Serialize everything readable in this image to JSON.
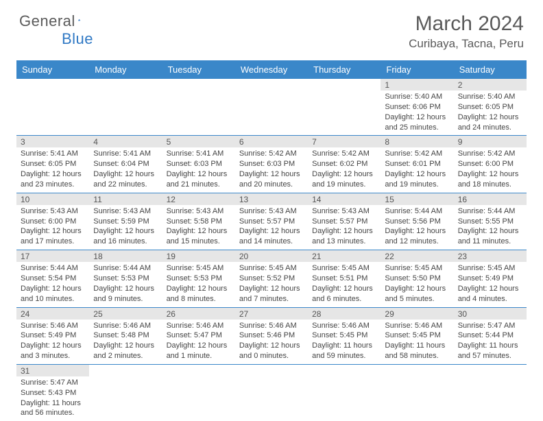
{
  "brand": {
    "name1": "General",
    "name2": "Blue"
  },
  "title": "March 2024",
  "location": "Curibaya, Tacna, Peru",
  "colors": {
    "header_bg": "#3a87c9",
    "header_fg": "#ffffff",
    "daynum_bg": "#e6e6e6",
    "rule": "#3a87c9",
    "text": "#444444",
    "title_fg": "#5a5a5a"
  },
  "weekdays": [
    "Sunday",
    "Monday",
    "Tuesday",
    "Wednesday",
    "Thursday",
    "Friday",
    "Saturday"
  ],
  "weeks": [
    [
      null,
      null,
      null,
      null,
      null,
      {
        "n": "1",
        "sr": "Sunrise: 5:40 AM",
        "ss": "Sunset: 6:06 PM",
        "d1": "Daylight: 12 hours",
        "d2": "and 25 minutes."
      },
      {
        "n": "2",
        "sr": "Sunrise: 5:40 AM",
        "ss": "Sunset: 6:05 PM",
        "d1": "Daylight: 12 hours",
        "d2": "and 24 minutes."
      }
    ],
    [
      {
        "n": "3",
        "sr": "Sunrise: 5:41 AM",
        "ss": "Sunset: 6:05 PM",
        "d1": "Daylight: 12 hours",
        "d2": "and 23 minutes."
      },
      {
        "n": "4",
        "sr": "Sunrise: 5:41 AM",
        "ss": "Sunset: 6:04 PM",
        "d1": "Daylight: 12 hours",
        "d2": "and 22 minutes."
      },
      {
        "n": "5",
        "sr": "Sunrise: 5:41 AM",
        "ss": "Sunset: 6:03 PM",
        "d1": "Daylight: 12 hours",
        "d2": "and 21 minutes."
      },
      {
        "n": "6",
        "sr": "Sunrise: 5:42 AM",
        "ss": "Sunset: 6:03 PM",
        "d1": "Daylight: 12 hours",
        "d2": "and 20 minutes."
      },
      {
        "n": "7",
        "sr": "Sunrise: 5:42 AM",
        "ss": "Sunset: 6:02 PM",
        "d1": "Daylight: 12 hours",
        "d2": "and 19 minutes."
      },
      {
        "n": "8",
        "sr": "Sunrise: 5:42 AM",
        "ss": "Sunset: 6:01 PM",
        "d1": "Daylight: 12 hours",
        "d2": "and 19 minutes."
      },
      {
        "n": "9",
        "sr": "Sunrise: 5:42 AM",
        "ss": "Sunset: 6:00 PM",
        "d1": "Daylight: 12 hours",
        "d2": "and 18 minutes."
      }
    ],
    [
      {
        "n": "10",
        "sr": "Sunrise: 5:43 AM",
        "ss": "Sunset: 6:00 PM",
        "d1": "Daylight: 12 hours",
        "d2": "and 17 minutes."
      },
      {
        "n": "11",
        "sr": "Sunrise: 5:43 AM",
        "ss": "Sunset: 5:59 PM",
        "d1": "Daylight: 12 hours",
        "d2": "and 16 minutes."
      },
      {
        "n": "12",
        "sr": "Sunrise: 5:43 AM",
        "ss": "Sunset: 5:58 PM",
        "d1": "Daylight: 12 hours",
        "d2": "and 15 minutes."
      },
      {
        "n": "13",
        "sr": "Sunrise: 5:43 AM",
        "ss": "Sunset: 5:57 PM",
        "d1": "Daylight: 12 hours",
        "d2": "and 14 minutes."
      },
      {
        "n": "14",
        "sr": "Sunrise: 5:43 AM",
        "ss": "Sunset: 5:57 PM",
        "d1": "Daylight: 12 hours",
        "d2": "and 13 minutes."
      },
      {
        "n": "15",
        "sr": "Sunrise: 5:44 AM",
        "ss": "Sunset: 5:56 PM",
        "d1": "Daylight: 12 hours",
        "d2": "and 12 minutes."
      },
      {
        "n": "16",
        "sr": "Sunrise: 5:44 AM",
        "ss": "Sunset: 5:55 PM",
        "d1": "Daylight: 12 hours",
        "d2": "and 11 minutes."
      }
    ],
    [
      {
        "n": "17",
        "sr": "Sunrise: 5:44 AM",
        "ss": "Sunset: 5:54 PM",
        "d1": "Daylight: 12 hours",
        "d2": "and 10 minutes."
      },
      {
        "n": "18",
        "sr": "Sunrise: 5:44 AM",
        "ss": "Sunset: 5:53 PM",
        "d1": "Daylight: 12 hours",
        "d2": "and 9 minutes."
      },
      {
        "n": "19",
        "sr": "Sunrise: 5:45 AM",
        "ss": "Sunset: 5:53 PM",
        "d1": "Daylight: 12 hours",
        "d2": "and 8 minutes."
      },
      {
        "n": "20",
        "sr": "Sunrise: 5:45 AM",
        "ss": "Sunset: 5:52 PM",
        "d1": "Daylight: 12 hours",
        "d2": "and 7 minutes."
      },
      {
        "n": "21",
        "sr": "Sunrise: 5:45 AM",
        "ss": "Sunset: 5:51 PM",
        "d1": "Daylight: 12 hours",
        "d2": "and 6 minutes."
      },
      {
        "n": "22",
        "sr": "Sunrise: 5:45 AM",
        "ss": "Sunset: 5:50 PM",
        "d1": "Daylight: 12 hours",
        "d2": "and 5 minutes."
      },
      {
        "n": "23",
        "sr": "Sunrise: 5:45 AM",
        "ss": "Sunset: 5:49 PM",
        "d1": "Daylight: 12 hours",
        "d2": "and 4 minutes."
      }
    ],
    [
      {
        "n": "24",
        "sr": "Sunrise: 5:46 AM",
        "ss": "Sunset: 5:49 PM",
        "d1": "Daylight: 12 hours",
        "d2": "and 3 minutes."
      },
      {
        "n": "25",
        "sr": "Sunrise: 5:46 AM",
        "ss": "Sunset: 5:48 PM",
        "d1": "Daylight: 12 hours",
        "d2": "and 2 minutes."
      },
      {
        "n": "26",
        "sr": "Sunrise: 5:46 AM",
        "ss": "Sunset: 5:47 PM",
        "d1": "Daylight: 12 hours",
        "d2": "and 1 minute."
      },
      {
        "n": "27",
        "sr": "Sunrise: 5:46 AM",
        "ss": "Sunset: 5:46 PM",
        "d1": "Daylight: 12 hours",
        "d2": "and 0 minutes."
      },
      {
        "n": "28",
        "sr": "Sunrise: 5:46 AM",
        "ss": "Sunset: 5:45 PM",
        "d1": "Daylight: 11 hours",
        "d2": "and 59 minutes."
      },
      {
        "n": "29",
        "sr": "Sunrise: 5:46 AM",
        "ss": "Sunset: 5:45 PM",
        "d1": "Daylight: 11 hours",
        "d2": "and 58 minutes."
      },
      {
        "n": "30",
        "sr": "Sunrise: 5:47 AM",
        "ss": "Sunset: 5:44 PM",
        "d1": "Daylight: 11 hours",
        "d2": "and 57 minutes."
      }
    ],
    [
      {
        "n": "31",
        "sr": "Sunrise: 5:47 AM",
        "ss": "Sunset: 5:43 PM",
        "d1": "Daylight: 11 hours",
        "d2": "and 56 minutes."
      },
      null,
      null,
      null,
      null,
      null,
      null
    ]
  ]
}
